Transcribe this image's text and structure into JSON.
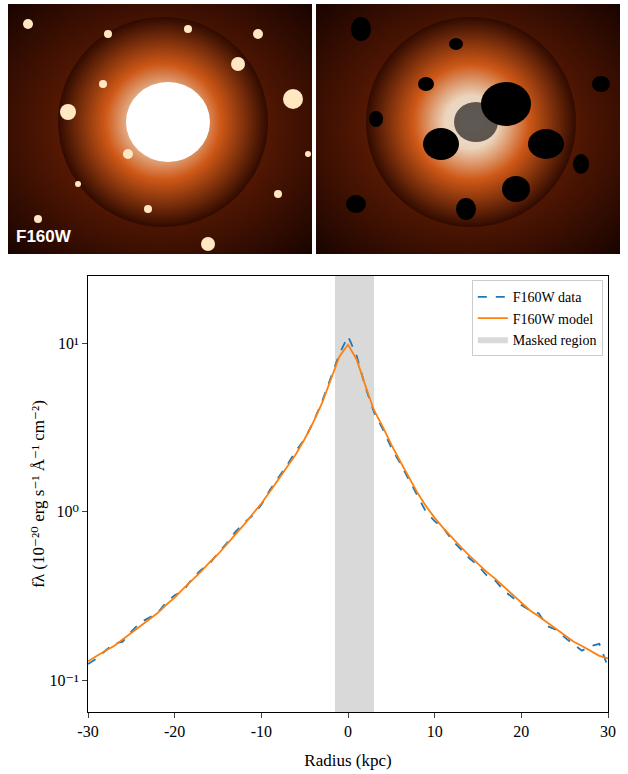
{
  "image_label": "F160W",
  "chart_data": {
    "type": "line",
    "x_label": "Radius (kpc)",
    "y_label": "fλ (10⁻²⁰ erg s⁻¹ Å⁻¹ cm⁻²)",
    "log": "y",
    "legend": "upper right",
    "xlim": [
      -30,
      30
    ],
    "xticks": [
      -30,
      -20,
      -10,
      0,
      10,
      20,
      30
    ],
    "ylim": [
      0.065,
      25
    ],
    "yticks": [
      {
        "value": 0.1,
        "label": "10⁻¹"
      },
      {
        "value": 1,
        "label": "10⁰"
      },
      {
        "value": 10,
        "label": "10¹"
      }
    ],
    "x": [
      -30,
      -29,
      -28,
      -27,
      -26,
      -25,
      -24,
      -23,
      -22,
      -21,
      -20,
      -19,
      -18,
      -17,
      -16,
      -15,
      -14,
      -13,
      -12,
      -11,
      -10,
      -9,
      -8,
      -7,
      -6,
      -5,
      -4,
      -3,
      -2,
      -1,
      0,
      1,
      2,
      3,
      4,
      5,
      6,
      7,
      8,
      9,
      10,
      11,
      12,
      13,
      14,
      15,
      16,
      17,
      18,
      19,
      20,
      21,
      22,
      23,
      24,
      25,
      26,
      27,
      28,
      29,
      30
    ],
    "series": [
      {
        "name": "F160W data",
        "color": "#1f77b4",
        "line_style": "dashed",
        "values": [
          0.125,
          0.135,
          0.15,
          0.165,
          0.17,
          0.195,
          0.22,
          0.235,
          0.25,
          0.29,
          0.32,
          0.34,
          0.4,
          0.45,
          0.49,
          0.57,
          0.65,
          0.76,
          0.86,
          0.95,
          1.1,
          1.35,
          1.6,
          1.9,
          2.3,
          2.7,
          3.4,
          4.5,
          6.2,
          8.6,
          11.0,
          8.4,
          5.5,
          3.9,
          3.1,
          2.4,
          1.95,
          1.55,
          1.25,
          1.0,
          0.88,
          0.8,
          0.68,
          0.6,
          0.53,
          0.48,
          0.42,
          0.39,
          0.34,
          0.31,
          0.28,
          0.26,
          0.25,
          0.21,
          0.2,
          0.18,
          0.165,
          0.15,
          0.16,
          0.165,
          0.12
        ]
      },
      {
        "name": "F160W model",
        "color": "#ff7f0e",
        "line_style": "solid",
        "values": [
          0.13,
          0.14,
          0.15,
          0.16,
          0.175,
          0.19,
          0.21,
          0.23,
          0.25,
          0.28,
          0.31,
          0.35,
          0.39,
          0.44,
          0.5,
          0.56,
          0.64,
          0.73,
          0.84,
          0.97,
          1.12,
          1.32,
          1.56,
          1.85,
          2.2,
          2.7,
          3.4,
          4.4,
          6.0,
          8.3,
          9.8,
          8.0,
          5.6,
          4.0,
          3.2,
          2.5,
          2.0,
          1.6,
          1.3,
          1.08,
          0.92,
          0.8,
          0.7,
          0.62,
          0.55,
          0.49,
          0.44,
          0.4,
          0.36,
          0.32,
          0.29,
          0.26,
          0.24,
          0.22,
          0.2,
          0.185,
          0.17,
          0.16,
          0.15,
          0.14,
          0.135
        ]
      }
    ],
    "masked_region": {
      "name": "Masked region",
      "color": "#d9d9d9",
      "x": [
        -1.5,
        3
      ]
    }
  }
}
